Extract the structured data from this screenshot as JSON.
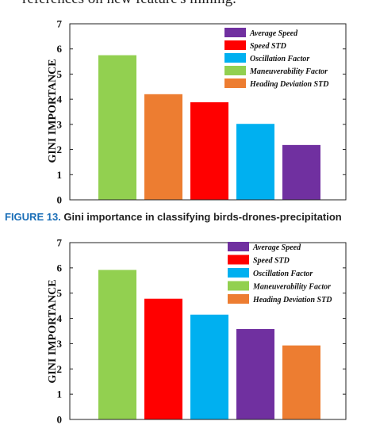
{
  "page": {
    "intro_text": "references on new feature's mining.",
    "caption_number": "FIGURE 13.",
    "caption_text": " Gini importance in classifying birds-drones-precipitation"
  },
  "colors": {
    "Average Speed": "#7030a0",
    "Speed STD": "#ff0000",
    "Oscillation Factor": "#00b0f0",
    "Maneuverability Factor": "#92d050",
    "Heading Deviation STD": "#ed7d31"
  },
  "chart_data": [
    {
      "type": "bar",
      "title": "",
      "xlabel": "",
      "ylabel": "GINI IMPORTANCE",
      "ylim": [
        0,
        7
      ],
      "yticks": [
        0,
        1,
        2,
        3,
        4,
        5,
        6,
        7
      ],
      "grid": false,
      "legend_position": "top-right",
      "legend": [
        "Average Speed",
        "Speed STD",
        "Oscillation Factor",
        "Maneuverability Factor",
        "Heading Deviation STD"
      ],
      "categories": [
        "Maneuverability Factor",
        "Heading Deviation STD",
        "Speed STD",
        "Oscillation Factor",
        "Average Speed"
      ],
      "values": [
        5.75,
        4.2,
        3.88,
        3.02,
        2.18
      ]
    },
    {
      "type": "bar",
      "title": "",
      "xlabel": "",
      "ylabel": "GINI IMPORTANCE",
      "ylim": [
        0,
        7
      ],
      "yticks": [
        0,
        1,
        2,
        3,
        4,
        5,
        6,
        7
      ],
      "grid": false,
      "legend_position": "top-right",
      "legend": [
        "Average Speed",
        "Speed STD",
        "Oscillation Factor",
        "Maneuverability Factor",
        "Heading Deviation STD"
      ],
      "categories": [
        "Maneuverability Factor",
        "Speed STD",
        "Oscillation Factor",
        "Average Speed",
        "Heading Deviation STD"
      ],
      "values": [
        5.92,
        4.78,
        4.15,
        3.58,
        2.93
      ]
    }
  ]
}
